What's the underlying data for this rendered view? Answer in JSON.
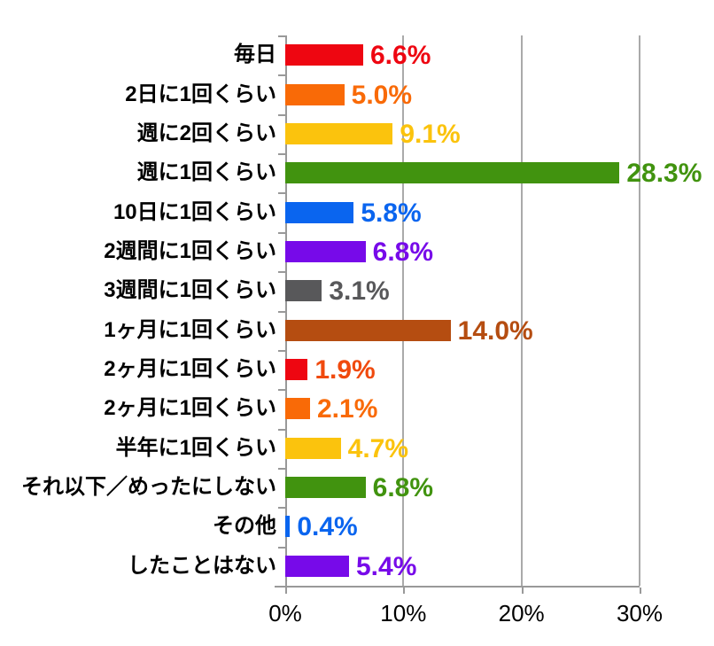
{
  "chart_data": {
    "type": "bar",
    "orientation": "horizontal",
    "title": "",
    "xlabel": "",
    "ylabel": "",
    "xlim": [
      0,
      30
    ],
    "grid": true,
    "legend": false,
    "background": "#ffffff",
    "axis_color": "#999999",
    "grid_color": "#aaaaaa",
    "text_color": "#000000",
    "categories": [
      "毎日",
      "2日に1回くらい",
      "週に2回くらい",
      "週に1回くらい",
      "10日に1回くらい",
      "2週間に1回くらい",
      "3週間に1回くらい",
      "1ヶ月に1回くらい",
      "2ヶ月に1回くらい",
      "2ヶ月に1回くらい",
      "半年に1回くらい",
      "それ以下／めったにしない",
      "その他",
      "したことはない"
    ],
    "values": [
      6.6,
      5.0,
      9.1,
      28.3,
      5.8,
      6.8,
      3.1,
      14.0,
      1.9,
      2.1,
      4.7,
      6.8,
      0.4,
      5.4
    ],
    "display_values": [
      "6.6%",
      "5.0%",
      "9.1%",
      "28.3%",
      "5.8%",
      "6.8%",
      "3.1%",
      "14.0%",
      "1.9%",
      "2.1%",
      "4.7%",
      "6.8%",
      "0.4%",
      "5.4%"
    ],
    "bar_colors": [
      "#ee0611",
      "#f96a07",
      "#fbc30d",
      "#41930f",
      "#0a65ef",
      "#770ae9",
      "#58585a",
      "#b54d11",
      "#ee0611",
      "#f96a07",
      "#fbc30d",
      "#41930f",
      "#0a65ef",
      "#770ae9"
    ],
    "value_label_colors": [
      "#ee0611",
      "#f96a07",
      "#fbc30d",
      "#41930f",
      "#0a65ef",
      "#770ae9",
      "#58585a",
      "#b54d11",
      "#f04a0e",
      "#f96a07",
      "#fbc30d",
      "#41930f",
      "#0a65ef",
      "#770ae9"
    ],
    "x_ticks": [
      {
        "value": 0,
        "label": "0%"
      },
      {
        "value": 10,
        "label": "10%"
      },
      {
        "value": 20,
        "label": "20%"
      },
      {
        "value": 30,
        "label": "30%"
      }
    ]
  }
}
